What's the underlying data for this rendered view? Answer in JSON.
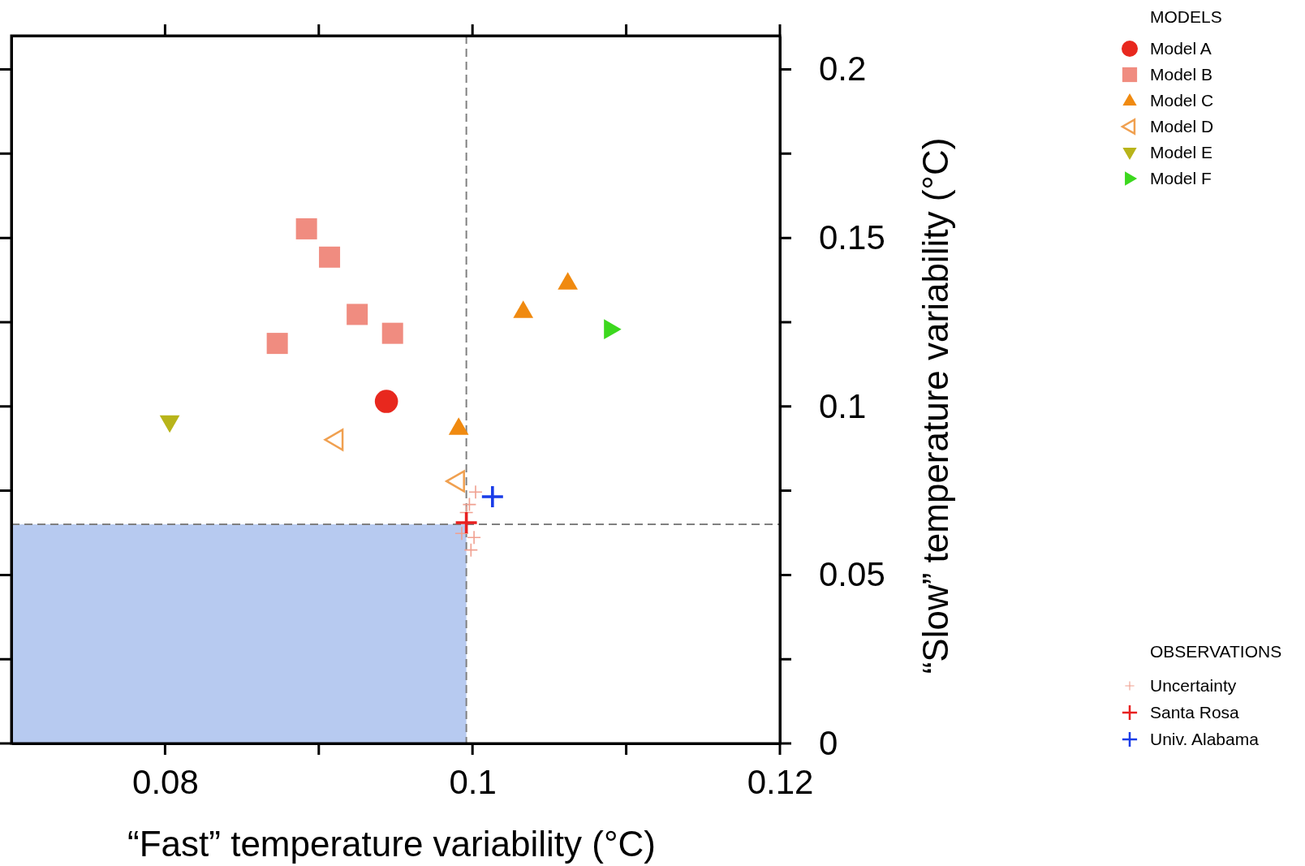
{
  "chart_data": {
    "type": "scatter",
    "xlabel": "“Fast” temperature variability (°C)",
    "ylabel": "“Slow” temperature variability (°C)",
    "legend_title": "MODELS",
    "legend": "right",
    "annotations": [
      "OBSERVATIONS"
    ],
    "xlim": [
      0.07,
      0.12
    ],
    "xticks": [
      {
        "value": 0.08,
        "label": "0.08"
      },
      {
        "value": 0.09,
        "label": null
      },
      {
        "value": 0.1,
        "label": "0.1"
      },
      {
        "value": 0.11,
        "label": null
      },
      {
        "value": 0.12,
        "label": "0.12"
      }
    ],
    "ylim": [
      0,
      0.21
    ],
    "yticks": [
      {
        "value": 0,
        "label": "0"
      },
      {
        "value": 0.025,
        "label": null
      },
      {
        "value": 0.05,
        "label": "0.05"
      },
      {
        "value": 0.075,
        "label": null
      },
      {
        "value": 0.1,
        "label": "0.1"
      },
      {
        "value": 0.125,
        "label": null
      },
      {
        "value": 0.15,
        "label": "0.15"
      },
      {
        "value": 0.175,
        "label": null
      },
      {
        "value": 0.2,
        "label": "0.2"
      }
    ],
    "ref_lines": [
      {
        "axis": "x",
        "value": 0.0996,
        "color": "#808080",
        "line_style": "dashed"
      },
      {
        "axis": "y",
        "value": 0.065,
        "color": "#808080",
        "line_style": "dashed"
      }
    ],
    "bands": [
      {
        "axis": "y",
        "from": 0,
        "to": 0.065,
        "color": "#b7caf0"
      }
    ],
    "series": [
      {
        "name": "Model A",
        "color": "#e8281e",
        "marker": "circle",
        "x": [
          0.0944
        ],
        "values": [
          0.1015
        ]
      },
      {
        "name": "Model B",
        "color": "#f08c80",
        "marker": "square",
        "x": [
          0.0892,
          0.0907,
          0.0925,
          0.0948,
          0.0873
        ],
        "values": [
          0.1527,
          0.1443,
          0.1273,
          0.1217,
          0.1187
        ]
      },
      {
        "name": "Model C",
        "color": "#f08a10",
        "marker": "triangle",
        "x": [
          0.1062,
          0.1033,
          0.0991
        ],
        "values": [
          0.1367,
          0.1283,
          0.0936
        ]
      },
      {
        "name": "Model D",
        "color": "#f0a050",
        "marker": "triangle-left-open",
        "x": [
          0.0911,
          0.099
        ],
        "values": [
          0.0901,
          0.0778
        ]
      },
      {
        "name": "Model E",
        "color": "#b8b41a",
        "marker": "triangle-down",
        "x": [
          0.0803
        ],
        "values": [
          0.0953
        ]
      },
      {
        "name": "Model F",
        "color": "#3cd81e",
        "marker": "triangle-right",
        "x": [
          0.109
        ],
        "values": [
          0.1229
        ]
      },
      {
        "name": "Uncertainty",
        "color": "#f0a090",
        "marker": "cross-small",
        "x": [
          0.0998,
          0.0996,
          0.0993,
          0.1001,
          0.0999,
          0.1002
        ],
        "values": [
          0.0709,
          0.0685,
          0.0623,
          0.0611,
          0.0574,
          0.0746
        ]
      },
      {
        "name": "Santa Rosa",
        "color": "#e82020",
        "marker": "cross",
        "x": [
          0.0996
        ],
        "values": [
          0.0655
        ]
      },
      {
        "name": "Univ. Alabama",
        "color": "#1a3ce8",
        "marker": "cross",
        "x": [
          0.1013
        ],
        "values": [
          0.0732
        ]
      }
    ]
  }
}
